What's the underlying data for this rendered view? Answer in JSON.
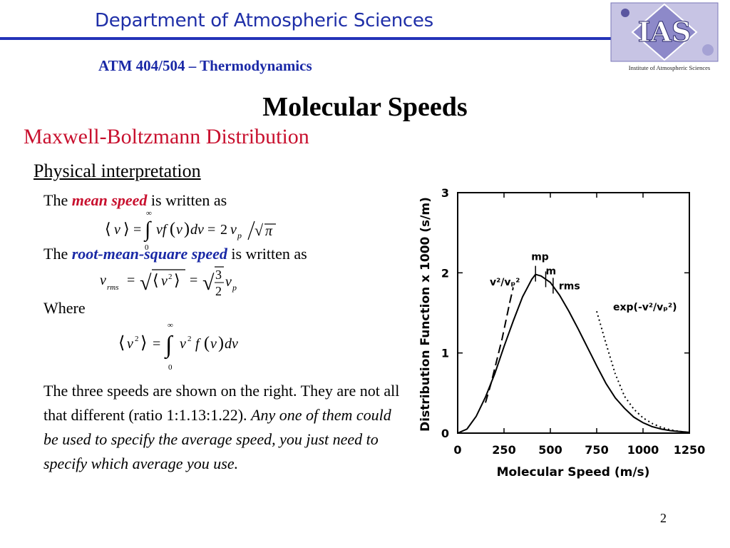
{
  "header": {
    "department": "Department of Atmospheric Sciences",
    "course": "ATM 404/504 – Thermodynamics",
    "logo_text": "IAS",
    "logo_caption": "Institute of Atmospheric Sciences"
  },
  "slide": {
    "title": "Molecular Speeds",
    "subtitle": "Maxwell-Boltzmann Distribution",
    "section": "Physical interpretation",
    "line1_pre": "The ",
    "line1_em": "mean speed",
    "line1_post": " is written as",
    "line2_pre": "The ",
    "line2_em": "root-mean-square speed",
    "line2_post": " is written as",
    "where": "Where",
    "para_normal": "The three speeds are shown on the right. They are not all that different (ratio 1:1.13:1.22). ",
    "para_italic": "Any one of them could be used to specify the average speed, you just need to specify which average you use.",
    "page_number": "2"
  },
  "colors": {
    "brand_blue": "#1f2fa8",
    "accent_red": "#c8102e"
  },
  "chart_data": {
    "type": "line",
    "xlabel": "Molecular Speed  (m/s)",
    "ylabel": "Distribution Function x 1000 (s/m)",
    "xlim": [
      0,
      1250
    ],
    "ylim": [
      0,
      3
    ],
    "x_ticks": [
      "0",
      "250",
      "500",
      "750",
      "1000",
      "1250"
    ],
    "y_ticks": [
      "0",
      "1",
      "2",
      "3"
    ],
    "vp": 420,
    "series": [
      {
        "kind": "solid",
        "x": [
          0,
          50,
          100,
          150,
          200,
          250,
          300,
          350,
          400,
          420,
          450,
          500,
          550,
          600,
          650,
          700,
          750,
          800,
          850,
          900,
          950,
          1000,
          1050,
          1100,
          1150,
          1200,
          1250
        ],
        "y": [
          0,
          0.05,
          0.21,
          0.45,
          0.74,
          1.08,
          1.4,
          1.7,
          1.92,
          1.98,
          1.96,
          1.88,
          1.72,
          1.52,
          1.3,
          1.07,
          0.84,
          0.62,
          0.44,
          0.31,
          0.2,
          0.13,
          0.08,
          0.05,
          0.03,
          0.02,
          0.01
        ]
      },
      {
        "name": "v²/vₚ²",
        "kind": "dashed",
        "x": [
          150,
          180,
          210,
          240,
          260,
          280,
          300
        ],
        "y": [
          0.38,
          0.62,
          0.9,
          1.18,
          1.4,
          1.62,
          1.82
        ]
      },
      {
        "name": "exp(-v²/vₚ²)",
        "kind": "dotted",
        "x": [
          750,
          800,
          850,
          900,
          950,
          1000,
          1050,
          1100,
          1150,
          1200,
          1250
        ],
        "y": [
          1.52,
          1.12,
          0.74,
          0.46,
          0.3,
          0.19,
          0.12,
          0.07,
          0.04,
          0.02,
          0.01
        ]
      }
    ],
    "markers": [
      {
        "label": "mp",
        "x": 420,
        "y": 1.98
      },
      {
        "label": "m",
        "x": 475,
        "y": 1.91
      },
      {
        "label": "rms",
        "x": 515,
        "y": 1.83
      }
    ]
  }
}
